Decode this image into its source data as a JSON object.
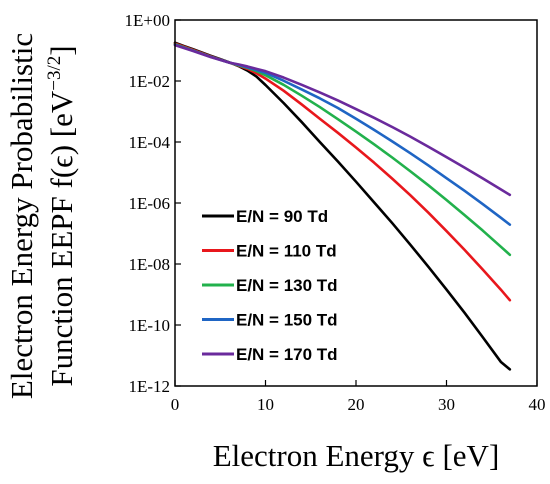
{
  "chart_data": {
    "type": "line",
    "title": "",
    "xlabel": "Electron Energy ϵ [eV]",
    "ylabel_line1": "Electron Energy Probabilistic",
    "ylabel_line2": "Function EEPF f(ϵ) [eV",
    "ylabel_exponent": "−3/2",
    "ylabel_close": "]",
    "xlim": [
      0,
      40
    ],
    "ylim_log10": [
      -12,
      0
    ],
    "y_scale": "log",
    "grid": false,
    "legend_position": "bottom-left",
    "x_ticks": [
      {
        "value": 0,
        "label": "0"
      },
      {
        "value": 10,
        "label": "10"
      },
      {
        "value": 20,
        "label": "20"
      },
      {
        "value": 30,
        "label": "30"
      },
      {
        "value": 40,
        "label": "40"
      }
    ],
    "y_ticks": [
      {
        "exp": 0,
        "label": "1E+00"
      },
      {
        "exp": -2,
        "label": "1E-02"
      },
      {
        "exp": -4,
        "label": "1E-04"
      },
      {
        "exp": -6,
        "label": "1E-06"
      },
      {
        "exp": -8,
        "label": "1E-08"
      },
      {
        "exp": -10,
        "label": "1E-10"
      },
      {
        "exp": -12,
        "label": "1E-12"
      }
    ],
    "series": [
      {
        "name": "E/N = 90 Td",
        "color": "#000000",
        "points": [
          [
            0,
            0.18
          ],
          [
            1,
            0.14
          ],
          [
            2,
            0.11
          ],
          [
            3,
            0.085
          ],
          [
            4,
            0.066
          ],
          [
            5,
            0.052
          ],
          [
            6,
            0.041
          ],
          [
            7,
            0.031
          ],
          [
            8,
            0.022
          ],
          [
            9,
            0.014
          ],
          [
            10,
            0.0074
          ],
          [
            12,
            0.0019
          ],
          [
            14,
            0.00045
          ],
          [
            16,
            0.0001
          ],
          [
            18,
            2.3e-05
          ],
          [
            20,
            5e-06
          ],
          [
            22,
            1.05e-06
          ],
          [
            24,
            2.2e-07
          ],
          [
            26,
            4.3e-08
          ],
          [
            28,
            8.1e-09
          ],
          [
            30,
            1.45e-09
          ],
          [
            32,
            2.5e-10
          ],
          [
            34,
            4e-11
          ],
          [
            36,
            6.2e-12
          ],
          [
            37,
            3.5e-12
          ]
        ]
      },
      {
        "name": "E/N = 110 Td",
        "color": "#e8171c",
        "points": [
          [
            0,
            0.17
          ],
          [
            2,
            0.105
          ],
          [
            4,
            0.064
          ],
          [
            6,
            0.04
          ],
          [
            7,
            0.032
          ],
          [
            8,
            0.025
          ],
          [
            9,
            0.018
          ],
          [
            10,
            0.012
          ],
          [
            12,
            0.0048
          ],
          [
            14,
            0.0017
          ],
          [
            16,
            0.00058
          ],
          [
            18,
            0.0002
          ],
          [
            20,
            6.6e-05
          ],
          [
            22,
            2.1e-05
          ],
          [
            24,
            6.3e-06
          ],
          [
            26,
            1.8e-06
          ],
          [
            28,
            4.8e-07
          ],
          [
            30,
            1.2e-07
          ],
          [
            32,
            2.9e-08
          ],
          [
            34,
            6.6e-09
          ],
          [
            36,
            1.45e-09
          ],
          [
            37,
            6.5e-10
          ]
        ]
      },
      {
        "name": "E/N = 130 Td",
        "color": "#22b14c",
        "points": [
          [
            0,
            0.16
          ],
          [
            2,
            0.1
          ],
          [
            4,
            0.062
          ],
          [
            6,
            0.04
          ],
          [
            7,
            0.033
          ],
          [
            8,
            0.027
          ],
          [
            9,
            0.021
          ],
          [
            10,
            0.0155
          ],
          [
            12,
            0.0075
          ],
          [
            14,
            0.0033
          ],
          [
            16,
            0.0014
          ],
          [
            18,
            0.00056
          ],
          [
            20,
            0.00022
          ],
          [
            22,
            8.4e-05
          ],
          [
            24,
            3.1e-05
          ],
          [
            26,
            1.1e-05
          ],
          [
            28,
            3.8e-06
          ],
          [
            30,
            1.25e-06
          ],
          [
            32,
            4e-07
          ],
          [
            34,
            1.25e-07
          ],
          [
            36,
            3.7e-08
          ],
          [
            37,
            2e-08
          ]
        ]
      },
      {
        "name": "E/N = 150 Td",
        "color": "#1f65c4",
        "points": [
          [
            0,
            0.155
          ],
          [
            2,
            0.098
          ],
          [
            4,
            0.061
          ],
          [
            6,
            0.04
          ],
          [
            7,
            0.034
          ],
          [
            8,
            0.028
          ],
          [
            9,
            0.023
          ],
          [
            10,
            0.0185
          ],
          [
            12,
            0.0102
          ],
          [
            14,
            0.0053
          ],
          [
            16,
            0.0027
          ],
          [
            18,
            0.0013
          ],
          [
            20,
            0.00058
          ],
          [
            22,
            0.00025
          ],
          [
            24,
            0.000105
          ],
          [
            26,
            4.3e-05
          ],
          [
            28,
            1.7e-05
          ],
          [
            30,
            6.5e-06
          ],
          [
            32,
            2.5e-06
          ],
          [
            34,
            9.2e-07
          ],
          [
            36,
            3.3e-07
          ],
          [
            37,
            1.95e-07
          ]
        ]
      },
      {
        "name": "E/N = 170 Td",
        "color": "#6a2a9c",
        "points": [
          [
            0,
            0.15
          ],
          [
            2,
            0.096
          ],
          [
            4,
            0.06
          ],
          [
            6,
            0.04
          ],
          [
            7,
            0.035
          ],
          [
            8,
            0.03
          ],
          [
            9,
            0.025
          ],
          [
            10,
            0.021
          ],
          [
            12,
            0.013
          ],
          [
            14,
            0.0075
          ],
          [
            16,
            0.0042
          ],
          [
            18,
            0.0023
          ],
          [
            20,
            0.0012
          ],
          [
            22,
            0.00062
          ],
          [
            24,
            0.00031
          ],
          [
            26,
            0.00015
          ],
          [
            28,
            7e-05
          ],
          [
            30,
            3.2e-05
          ],
          [
            32,
            1.45e-05
          ],
          [
            34,
            6.4e-06
          ],
          [
            36,
            2.8e-06
          ],
          [
            37,
            1.85e-06
          ]
        ]
      }
    ]
  }
}
